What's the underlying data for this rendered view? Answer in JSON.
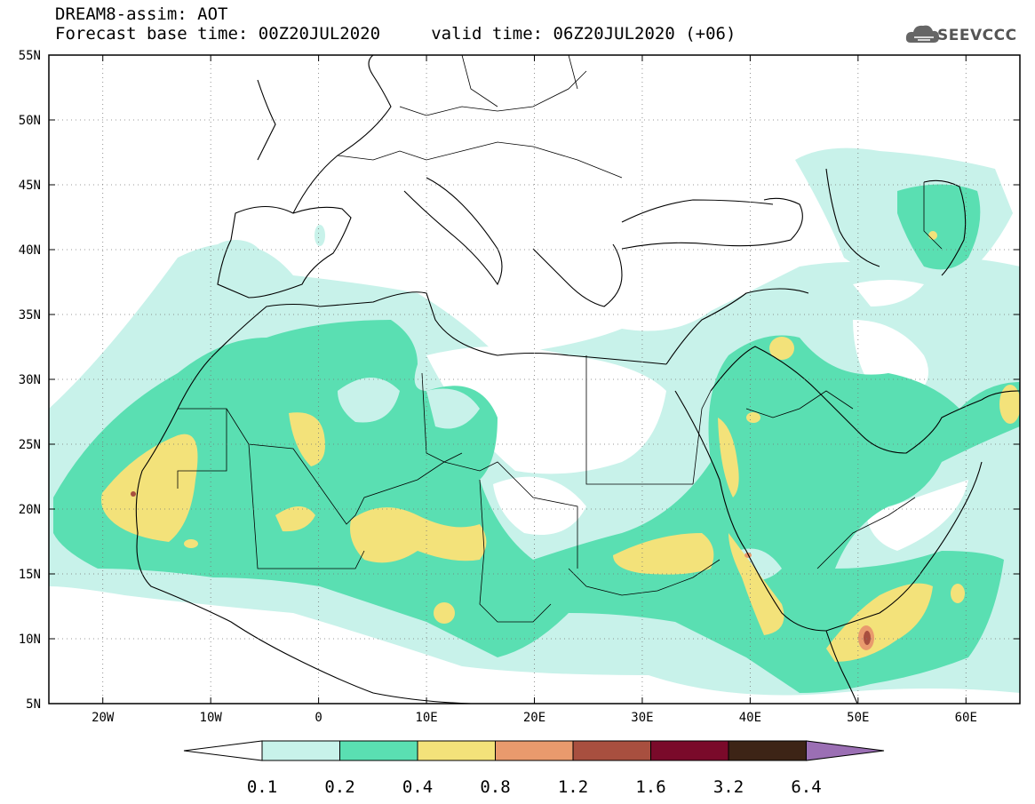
{
  "header": {
    "line1": "DREAM8-assim: AOT",
    "line2": "Forecast base time: 00Z20JUL2020     valid time: 06Z20JUL2020 (+06)"
  },
  "logo": {
    "text": "SEEVCCC",
    "icon": "cloud-icon"
  },
  "map": {
    "lat_labels": [
      "55N",
      "50N",
      "45N",
      "40N",
      "35N",
      "30N",
      "25N",
      "20N",
      "15N",
      "10N",
      "5N"
    ],
    "lon_labels": [
      "20W",
      "10W",
      "0",
      "10E",
      "20E",
      "30E",
      "40E",
      "50E",
      "60E"
    ],
    "lat_range": [
      5,
      55
    ],
    "lon_range": [
      -25,
      65
    ],
    "grid": "dotted",
    "field": "aerosol optical thickness"
  },
  "colorbar": {
    "bins": [
      {
        "color": "#c8f2ea"
      },
      {
        "color": "#5adfb2"
      },
      {
        "color": "#f3e27a"
      },
      {
        "color": "#e99a6d"
      },
      {
        "color": "#a84f3f"
      },
      {
        "color": "#7a0a2a"
      },
      {
        "color": "#3d2416"
      }
    ],
    "over_color": "#9b6fb4",
    "under_color": "#ffffff",
    "tick_labels": [
      "0.1",
      "0.2",
      "0.4",
      "0.8",
      "1.2",
      "1.6",
      "3.2",
      "6.4"
    ]
  },
  "colors": {
    "c01": "#c8f2ea",
    "c02": "#5adfb2",
    "c04": "#f3e27a",
    "c08": "#e99a6d",
    "c12": "#a84f3f"
  }
}
